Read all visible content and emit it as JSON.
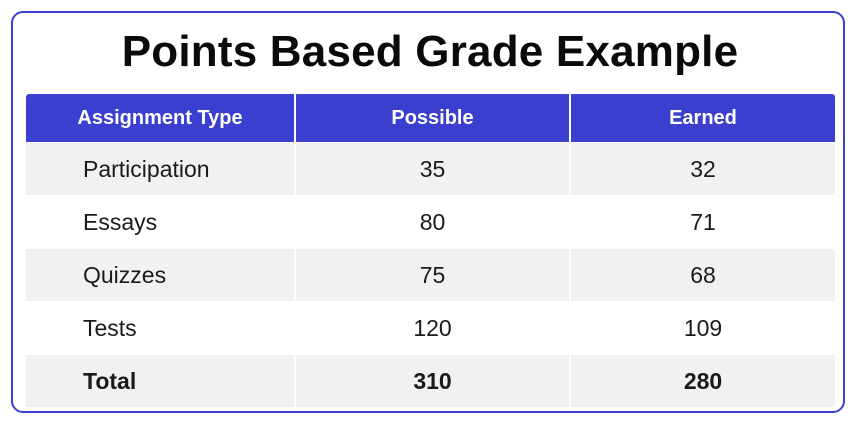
{
  "title": "Points Based Grade Example",
  "table": {
    "headers": [
      "Assignment Type",
      "Possible",
      "Earned"
    ],
    "rows": [
      {
        "type": "Participation",
        "possible": "35",
        "earned": "32"
      },
      {
        "type": "Essays",
        "possible": "80",
        "earned": "71"
      },
      {
        "type": "Quizzes",
        "possible": "75",
        "earned": "68"
      },
      {
        "type": "Tests",
        "possible": "120",
        "earned": "109"
      }
    ],
    "total": {
      "type": "Total",
      "possible": "310",
      "earned": "280"
    }
  },
  "colors": {
    "accent": "#3b3fd0",
    "row_shade": "#f1f1f3",
    "text": "#1a1a1a"
  }
}
